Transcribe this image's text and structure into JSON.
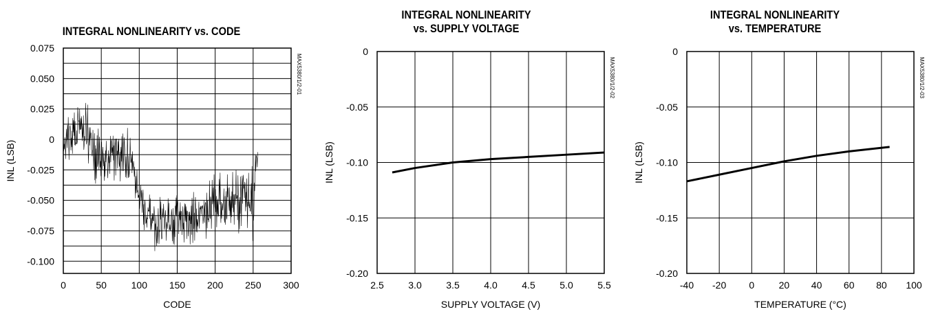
{
  "chart_data": [
    {
      "type": "line",
      "title": "INTEGRAL NONLINEARITY vs. CODE",
      "title_lines": [
        "INTEGRAL NONLINEARITY vs. CODE"
      ],
      "xlabel": "CODE",
      "ylabel": "INL (LSB)",
      "xlim": [
        0,
        300
      ],
      "ylim": [
        -0.11,
        0.075
      ],
      "xticks": [
        0,
        50,
        100,
        150,
        200,
        250,
        300
      ],
      "xtick_labels": [
        "0",
        "50",
        "100",
        "150",
        "200",
        "250",
        "300"
      ],
      "yticks": [
        0.075,
        0.05,
        0.025,
        0,
        -0.025,
        -0.05,
        -0.075,
        -0.1
      ],
      "ytick_labels": [
        "0.075",
        "0.050",
        "0.025",
        "0",
        "-0.025",
        "-0.050",
        "-0.075",
        "-0.100"
      ],
      "grid": true,
      "side_label": "MAX5380/1/2-01",
      "series": [
        {
          "envelope": {
            "x": [
              0,
              10,
              20,
              30,
              40,
              50,
              60,
              70,
              80,
              90,
              100,
              110,
              120,
              130,
              140,
              150,
              160,
              170,
              180,
              190,
              200,
              210,
              220,
              230,
              240,
              250,
              256
            ],
            "high": [
              0.005,
              0.028,
              0.032,
              0.038,
              0.022,
              0.015,
              0.012,
              0.02,
              0.018,
              0.012,
              -0.03,
              -0.04,
              -0.045,
              -0.04,
              -0.045,
              -0.042,
              -0.04,
              -0.038,
              -0.04,
              -0.035,
              -0.025,
              -0.028,
              -0.02,
              -0.025,
              -0.022,
              -0.02,
              0.0
            ],
            "low": [
              -0.02,
              -0.025,
              -0.02,
              -0.03,
              -0.04,
              -0.038,
              -0.04,
              -0.035,
              -0.04,
              -0.045,
              -0.06,
              -0.085,
              -0.095,
              -0.09,
              -0.09,
              -0.085,
              -0.088,
              -0.09,
              -0.085,
              -0.09,
              -0.075,
              -0.08,
              -0.07,
              -0.078,
              -0.075,
              -0.085,
              -0.02
            ]
          }
        }
      ]
    },
    {
      "type": "line",
      "title": "INTEGRAL NONLINEARITY vs. SUPPLY VOLTAGE",
      "title_lines": [
        "INTEGRAL NONLINEARITY",
        "vs. SUPPLY VOLTAGE"
      ],
      "xlabel": "SUPPLY VOLTAGE (V)",
      "ylabel": "INL (LSB)",
      "xlim": [
        2.5,
        5.5
      ],
      "ylim": [
        -0.2,
        0
      ],
      "xticks": [
        2.5,
        3.0,
        3.5,
        4.0,
        4.5,
        5.0,
        5.5
      ],
      "xtick_labels": [
        "2.5",
        "3.0",
        "3.5",
        "4.0",
        "4.5",
        "5.0",
        "5.5"
      ],
      "yticks": [
        0,
        -0.05,
        -0.1,
        -0.15,
        -0.2
      ],
      "ytick_labels": [
        "0",
        "-0.05",
        "-0.10",
        "-0.15",
        "-0.20"
      ],
      "grid": true,
      "side_label": "MAX5380/1/2-02",
      "series": [
        {
          "x": [
            2.7,
            3.0,
            3.5,
            4.0,
            4.5,
            5.0,
            5.5
          ],
          "y": [
            -0.109,
            -0.105,
            -0.1,
            -0.097,
            -0.095,
            -0.093,
            -0.091
          ]
        }
      ]
    },
    {
      "type": "line",
      "title": "INTEGRAL NONLINEARITY vs. TEMPERATURE",
      "title_lines": [
        "INTEGRAL NONLINEARITY",
        "vs. TEMPERATURE"
      ],
      "xlabel": "TEMPERATURE (°C)",
      "ylabel": "INL (LSB)",
      "xlim": [
        -40,
        100
      ],
      "ylim": [
        -0.2,
        0
      ],
      "xticks": [
        -40,
        -20,
        0,
        20,
        40,
        60,
        80,
        100
      ],
      "xtick_labels": [
        "-40",
        "-20",
        "0",
        "20",
        "40",
        "60",
        "80",
        "100"
      ],
      "yticks": [
        0,
        -0.05,
        -0.1,
        -0.15,
        -0.2
      ],
      "ytick_labels": [
        "0",
        "-0.05",
        "-0.10",
        "-0.15",
        "-0.20"
      ],
      "grid": true,
      "side_label": "MAX5380/1/2-03",
      "series": [
        {
          "x": [
            -40,
            -20,
            0,
            20,
            40,
            60,
            85
          ],
          "y": [
            -0.117,
            -0.111,
            -0.105,
            -0.099,
            -0.094,
            -0.09,
            -0.086
          ]
        }
      ]
    }
  ]
}
